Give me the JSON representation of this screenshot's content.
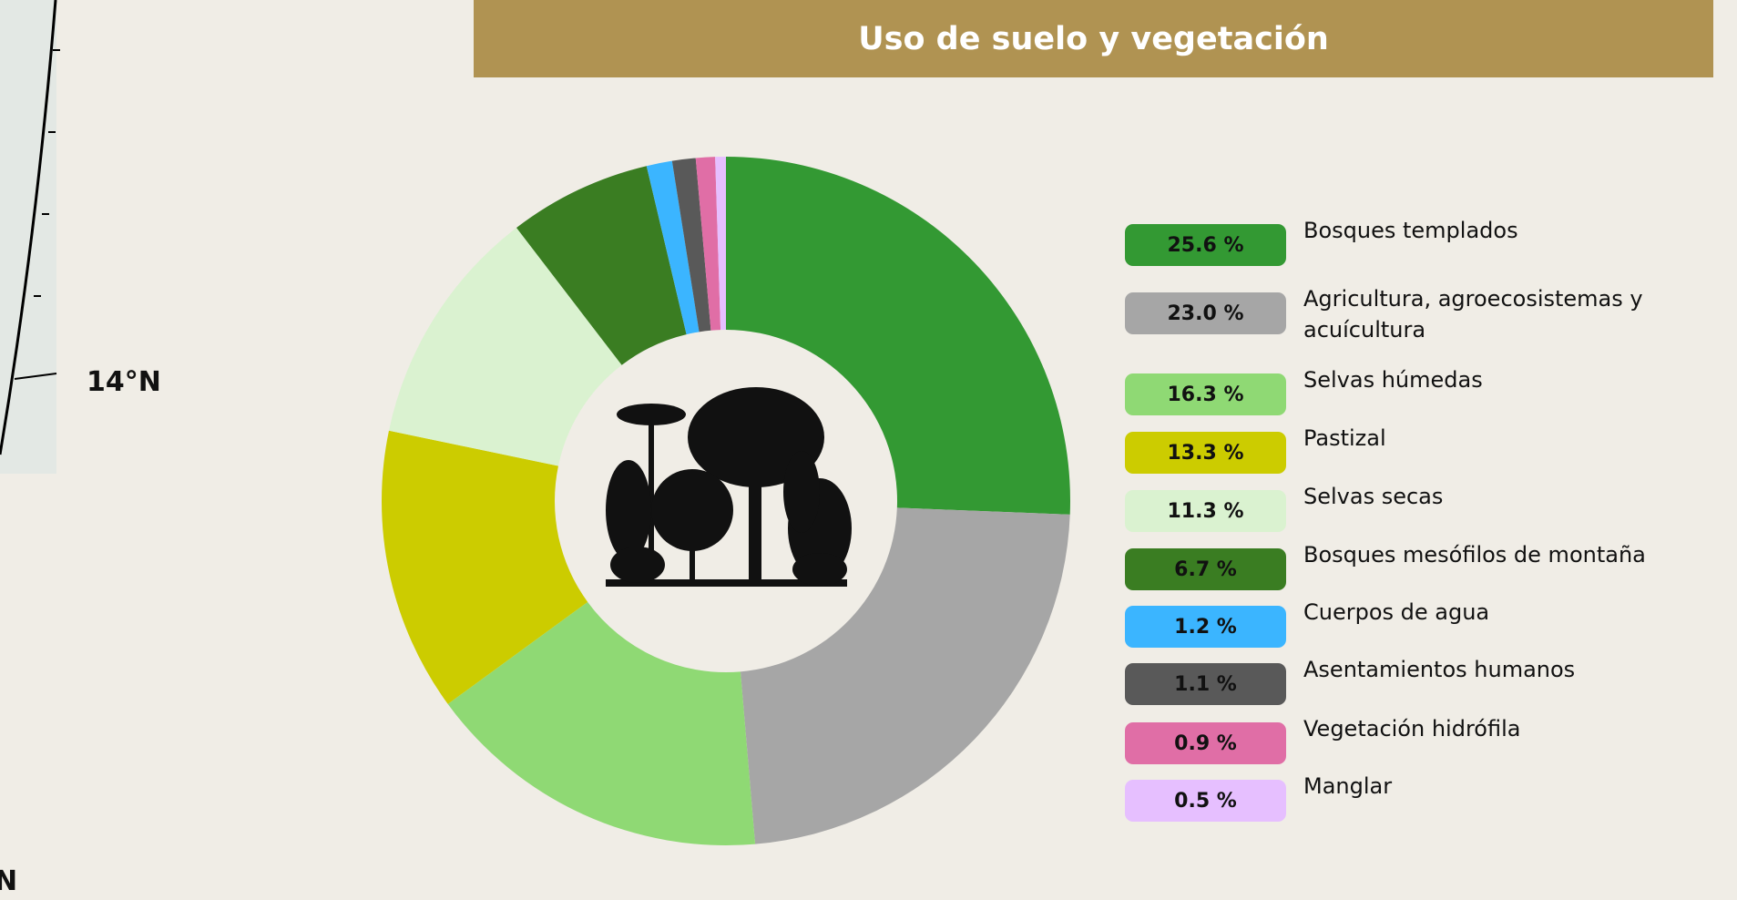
{
  "map_labels": [
    "14°N",
    "N"
  ],
  "chart_data": {
    "type": "pie",
    "donut": true,
    "title": "Uso de suelo y vegetación",
    "categories": [
      "Bosques templados",
      "Agricultura, agroecosistemas y acuícultura",
      "Selvas húmedas",
      "Pastizal",
      "Selvas secas",
      "Bosques mesófilos de montaña",
      "Cuerpos de agua",
      "Asentamientos humanos",
      "Vegetación hidrófila",
      "Manglar"
    ],
    "values": [
      25.6,
      23.0,
      16.3,
      13.3,
      11.3,
      6.7,
      1.2,
      1.1,
      0.9,
      0.5
    ],
    "value_labels": [
      "25.6 %",
      "23.0 %",
      "16.3 %",
      "13.3 %",
      "11.3 %",
      "6.7 %",
      "1.2 %",
      "1.1 %",
      "0.9 %",
      "0.5 %"
    ],
    "colors": [
      "#339933",
      "#a6a6a6",
      "#8fd974",
      "#cccc00",
      "#daf2d0",
      "#3a7d22",
      "#3bb5ff",
      "#595959",
      "#e06ea6",
      "#e6bfff"
    ],
    "legend": "right"
  }
}
